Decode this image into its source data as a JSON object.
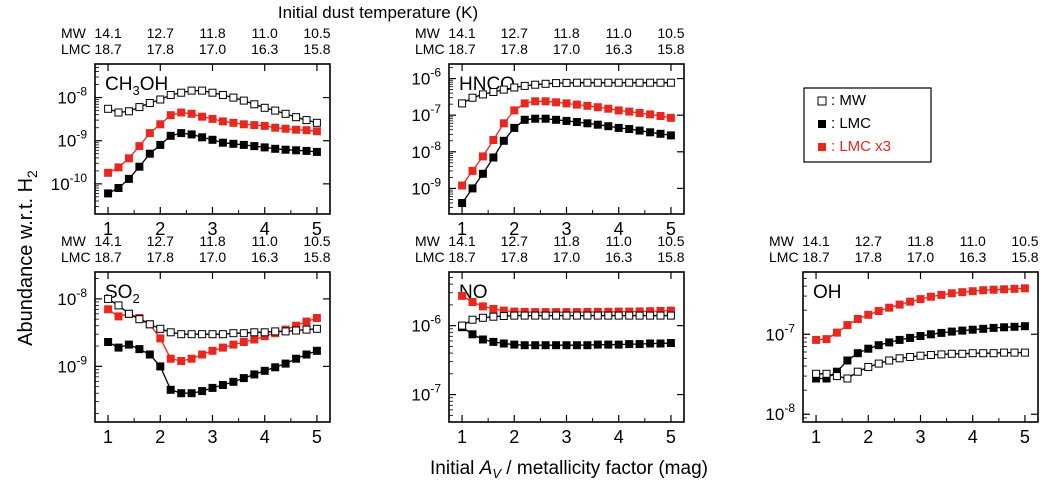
{
  "figure": {
    "top_title": "Initial dust temperature (K)",
    "ylabel_text": "Abundance w.r.t. H",
    "ylabel_sub": "2",
    "xlabel_pre": "Initial ",
    "xlabel_italic": "A",
    "xlabel_sub": "V",
    "xlabel_post": " / metallicity factor (mag)"
  },
  "temperature_axis": {
    "mw_label": "MW",
    "lmc_label": "LMC",
    "mw_values": [
      "14.1",
      "12.7",
      "11.8",
      "11.0",
      "10.5"
    ],
    "lmc_values": [
      "18.7",
      "17.8",
      "17.0",
      "16.3",
      "15.8"
    ]
  },
  "legend": {
    "items": [
      {
        "label": ": MW",
        "color": "#000000",
        "filled": false
      },
      {
        "label": ": LMC",
        "color": "#000000",
        "filled": true
      },
      {
        "label": ": LMC x3",
        "color": "#e8281e",
        "filled": true
      }
    ]
  },
  "colors": {
    "mw": "#000000",
    "lmc": "#000000",
    "lmc_x3": "#e8281e"
  },
  "chart_data": [
    {
      "type": "line",
      "panel_label": "CH3OH",
      "panel_label_main": "CH",
      "panel_label_sub": "3",
      "panel_label_tail": "OH",
      "log_scale": true,
      "ylim": [
        2e-11,
        6e-08
      ],
      "xlim": [
        0.75,
        5.25
      ],
      "x": [
        1,
        1.2,
        1.4,
        1.6,
        1.8,
        2,
        2.2,
        2.4,
        2.6,
        2.8,
        3,
        3.2,
        3.4,
        3.6,
        3.8,
        4,
        4.2,
        4.4,
        4.6,
        4.8,
        5
      ],
      "xticks": [
        1,
        2,
        3,
        4,
        5
      ],
      "yticks": [
        1e-10,
        1e-09,
        1e-08
      ],
      "ytick_exp": [
        "-10",
        "-9",
        "-8"
      ],
      "series": [
        {
          "name": "MW",
          "values": [
            5.5e-09,
            4.5e-09,
            4.8e-09,
            6e-09,
            7.5e-09,
            9e-09,
            1.15e-08,
            1.3e-08,
            1.45e-08,
            1.45e-08,
            1.3e-08,
            1.15e-08,
            1e-08,
            8.5e-09,
            7e-09,
            5.8e-09,
            5e-09,
            4.2e-09,
            3.5e-09,
            3e-09,
            2.6e-09
          ]
        },
        {
          "name": "LMC",
          "values": [
            6e-11,
            8e-11,
            1.3e-10,
            2.5e-10,
            5e-10,
            8e-10,
            1.3e-09,
            1.5e-09,
            1.4e-09,
            1.2e-09,
            1.05e-09,
            9e-10,
            8.5e-10,
            8e-10,
            7.5e-10,
            7e-10,
            6.5e-10,
            6.2e-10,
            6e-10,
            5.8e-10,
            5.5e-10
          ]
        },
        {
          "name": "LMC x3",
          "values": [
            1.8e-10,
            2.4e-10,
            3.9e-10,
            7.5e-10,
            1.5e-09,
            2.4e-09,
            3.9e-09,
            4.5e-09,
            4.2e-09,
            3.6e-09,
            3.2e-09,
            2.8e-09,
            2.6e-09,
            2.4e-09,
            2.3e-09,
            2.2e-09,
            2e-09,
            1.9e-09,
            1.8e-09,
            1.75e-09,
            1.65e-09
          ]
        }
      ]
    },
    {
      "type": "line",
      "panel_label": "HNCO",
      "panel_label_main": "HNCO",
      "panel_label_sub": "",
      "panel_label_tail": "",
      "log_scale": true,
      "ylim": [
        2e-10,
        2.5e-06
      ],
      "xlim": [
        0.75,
        5.25
      ],
      "x": [
        1,
        1.2,
        1.4,
        1.6,
        1.8,
        2,
        2.2,
        2.4,
        2.6,
        2.8,
        3,
        3.2,
        3.4,
        3.6,
        3.8,
        4,
        4.2,
        4.4,
        4.6,
        4.8,
        5
      ],
      "xticks": [
        1,
        2,
        3,
        4,
        5
      ],
      "yticks": [
        1e-09,
        1e-08,
        1e-07,
        1e-06
      ],
      "ytick_exp": [
        "-9",
        "-8",
        "-7",
        "-6"
      ],
      "series": [
        {
          "name": "MW",
          "values": [
            2.1e-07,
            3e-07,
            3.7e-07,
            4.3e-07,
            5e-07,
            5.7e-07,
            6.3e-07,
            6.8e-07,
            7.2e-07,
            7.5e-07,
            7.6e-07,
            7.7e-07,
            7.7e-07,
            7.7e-07,
            7.7e-07,
            7.7e-07,
            7.7e-07,
            7.7e-07,
            7.7e-07,
            7.7e-07,
            7.7e-07
          ]
        },
        {
          "name": "LMC",
          "values": [
            4e-10,
            1e-09,
            2.5e-09,
            7e-09,
            2e-08,
            4.5e-08,
            7.5e-08,
            8e-08,
            8e-08,
            7.5e-08,
            7e-08,
            6.5e-08,
            6e-08,
            5.5e-08,
            5e-08,
            4.5e-08,
            4.2e-08,
            3.8e-08,
            3.4e-08,
            3.1e-08,
            2.8e-08
          ]
        },
        {
          "name": "LMC x3",
          "values": [
            1.2e-09,
            3e-09,
            7.5e-09,
            2.1e-08,
            6e-08,
            1.35e-07,
            2.1e-07,
            2.4e-07,
            2.4e-07,
            2.25e-07,
            2.1e-07,
            1.95e-07,
            1.8e-07,
            1.65e-07,
            1.5e-07,
            1.35e-07,
            1.25e-07,
            1.15e-07,
            1.05e-07,
            9.5e-08,
            8.5e-08
          ]
        }
      ]
    },
    {
      "type": "line",
      "panel_label": "SO2",
      "panel_label_main": "SO",
      "panel_label_sub": "2",
      "panel_label_tail": "",
      "log_scale": true,
      "ylim": [
        1.5e-10,
        2.5e-08
      ],
      "xlim": [
        0.75,
        5.25
      ],
      "x": [
        1,
        1.2,
        1.4,
        1.6,
        1.8,
        2,
        2.2,
        2.4,
        2.6,
        2.8,
        3,
        3.2,
        3.4,
        3.6,
        3.8,
        4,
        4.2,
        4.4,
        4.6,
        4.8,
        5
      ],
      "xticks": [
        1,
        2,
        3,
        4,
        5
      ],
      "yticks": [
        1e-09,
        1e-08
      ],
      "ytick_exp": [
        "-9",
        "-8"
      ],
      "series": [
        {
          "name": "MW",
          "values": [
            1e-08,
            8e-09,
            6e-09,
            5e-09,
            4.2e-09,
            3.6e-09,
            3.2e-09,
            3e-09,
            3e-09,
            3e-09,
            3e-09,
            3e-09,
            3.1e-09,
            3.1e-09,
            3.2e-09,
            3.2e-09,
            3.3e-09,
            3.3e-09,
            3.4e-09,
            3.5e-09,
            3.6e-09
          ]
        },
        {
          "name": "LMC",
          "values": [
            2.3e-09,
            1.9e-09,
            2.1e-09,
            1.8e-09,
            1.5e-09,
            1e-09,
            4.5e-10,
            4e-10,
            4e-10,
            4.3e-10,
            4.8e-10,
            5.3e-10,
            5.9e-10,
            6.7e-10,
            7.6e-10,
            8.6e-10,
            9.7e-10,
            1.1e-09,
            1.3e-09,
            1.5e-09,
            1.7e-09
          ]
        },
        {
          "name": "LMC x3",
          "values": [
            7e-09,
            5.5e-09,
            6e-09,
            5.2e-09,
            4.2e-09,
            2.6e-09,
            1.3e-09,
            1.2e-09,
            1.3e-09,
            1.5e-09,
            1.7e-09,
            1.9e-09,
            2.1e-09,
            2.3e-09,
            2.5e-09,
            2.8e-09,
            3.1e-09,
            3.5e-09,
            4e-09,
            4.6e-09,
            5.2e-09
          ]
        }
      ]
    },
    {
      "type": "line",
      "panel_label": "NO",
      "panel_label_main": "NO",
      "panel_label_sub": "",
      "panel_label_tail": "",
      "log_scale": true,
      "ylim": [
        4e-08,
        6e-06
      ],
      "xlim": [
        0.75,
        5.25
      ],
      "x": [
        1,
        1.2,
        1.4,
        1.6,
        1.8,
        2,
        2.2,
        2.4,
        2.6,
        2.8,
        3,
        3.2,
        3.4,
        3.6,
        3.8,
        4,
        4.2,
        4.4,
        4.6,
        4.8,
        5
      ],
      "xticks": [
        1,
        2,
        3,
        4,
        5
      ],
      "yticks": [
        1e-07,
        1e-06
      ],
      "ytick_exp": [
        "-7",
        "-6"
      ],
      "series": [
        {
          "name": "MW",
          "values": [
            1e-06,
            1.22e-06,
            1.3e-06,
            1.35e-06,
            1.38e-06,
            1.4e-06,
            1.4e-06,
            1.4e-06,
            1.4e-06,
            1.4e-06,
            1.4e-06,
            1.4e-06,
            1.4e-06,
            1.4e-06,
            1.4e-06,
            1.4e-06,
            1.4e-06,
            1.4e-06,
            1.4e-06,
            1.4e-06,
            1.4e-06
          ]
        },
        {
          "name": "LMC",
          "values": [
            9.5e-07,
            7.5e-07,
            6.3e-07,
            5.8e-07,
            5.5e-07,
            5.3e-07,
            5.2e-07,
            5.2e-07,
            5.2e-07,
            5.2e-07,
            5.2e-07,
            5.2e-07,
            5.2e-07,
            5.3e-07,
            5.3e-07,
            5.3e-07,
            5.4e-07,
            5.4e-07,
            5.5e-07,
            5.5e-07,
            5.6e-07
          ]
        },
        {
          "name": "LMC x3",
          "values": [
            2.7e-06,
            2.2e-06,
            1.9e-06,
            1.75e-06,
            1.65e-06,
            1.6e-06,
            1.58e-06,
            1.57e-06,
            1.57e-06,
            1.57e-06,
            1.57e-06,
            1.57e-06,
            1.58e-06,
            1.58e-06,
            1.59e-06,
            1.6e-06,
            1.6e-06,
            1.61e-06,
            1.62e-06,
            1.63e-06,
            1.65e-06
          ]
        }
      ]
    },
    {
      "type": "line",
      "panel_label": "OH",
      "panel_label_main": "OH",
      "panel_label_sub": "",
      "panel_label_tail": "",
      "log_scale": true,
      "ylim": [
        8e-09,
        6e-07
      ],
      "xlim": [
        0.75,
        5.25
      ],
      "x": [
        1,
        1.2,
        1.4,
        1.6,
        1.8,
        2,
        2.2,
        2.4,
        2.6,
        2.8,
        3,
        3.2,
        3.4,
        3.6,
        3.8,
        4,
        4.2,
        4.4,
        4.6,
        4.8,
        5
      ],
      "xticks": [
        1,
        2,
        3,
        4,
        5
      ],
      "yticks": [
        1e-08,
        1e-07
      ],
      "ytick_exp": [
        "-8",
        "-7"
      ],
      "series": [
        {
          "name": "MW",
          "values": [
            3.2e-08,
            3.2e-08,
            3e-08,
            2.8e-08,
            3.4e-08,
            3.9e-08,
            4.3e-08,
            4.7e-08,
            5e-08,
            5.2e-08,
            5.4e-08,
            5.5e-08,
            5.6e-08,
            5.7e-08,
            5.7e-08,
            5.8e-08,
            5.8e-08,
            5.8e-08,
            5.9e-08,
            5.9e-08,
            5.9e-08
          ]
        },
        {
          "name": "LMC",
          "values": [
            2.8e-08,
            2.8e-08,
            3.4e-08,
            4.7e-08,
            5.8e-08,
            6.6e-08,
            7.3e-08,
            7.9e-08,
            8.5e-08,
            9e-08,
            9.5e-08,
            1e-07,
            1.04e-07,
            1.08e-07,
            1.11e-07,
            1.14e-07,
            1.17e-07,
            1.2e-07,
            1.22e-07,
            1.24e-07,
            1.26e-07
          ]
        },
        {
          "name": "LMC x3",
          "values": [
            8.5e-08,
            8.7e-08,
            1.05e-07,
            1.3e-07,
            1.55e-07,
            1.75e-07,
            1.95e-07,
            2.15e-07,
            2.35e-07,
            2.55e-07,
            2.75e-07,
            2.95e-07,
            3.1e-07,
            3.25e-07,
            3.35e-07,
            3.45e-07,
            3.55e-07,
            3.6e-07,
            3.65e-07,
            3.7e-07,
            3.75e-07
          ]
        }
      ]
    }
  ]
}
